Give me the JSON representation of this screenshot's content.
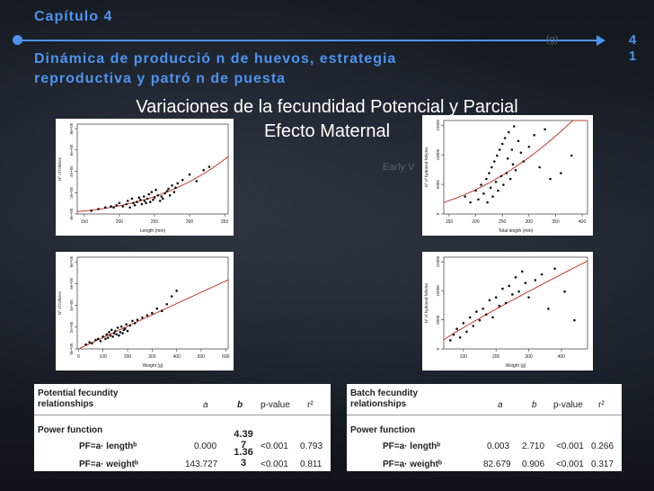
{
  "header": {
    "chapter": "Capítulo  4",
    "page_number_line1": "4",
    "page_number_line2": "1",
    "subtitle_line1": "Dinámica de producció n de huevos, estrategia",
    "subtitle_line2": "reproductiva y  patró n de puesta",
    "faint_overlay_1": "Early V",
    "faint_overlay_2": "(g)"
  },
  "slide": {
    "title_line1": "Variaciones de la fecundidad Potencial y Parcial",
    "title_line2": "Efecto Maternal"
  },
  "chart_data": [
    {
      "type": "scatter",
      "xlabel": "Length (mm)",
      "ylabel": "Nº of follicles",
      "xticks": [
        150,
        200,
        250,
        300,
        350
      ],
      "yticks": [
        "0e+00",
        "2e+05",
        "4e+05",
        "6e+05",
        "8e+05"
      ],
      "xlim": [
        140,
        355
      ],
      "ylim": [
        0,
        820000
      ],
      "fit": "power",
      "x": [
        160,
        170,
        180,
        188,
        192,
        196,
        200,
        205,
        210,
        212,
        215,
        218,
        220,
        222,
        225,
        228,
        230,
        232,
        235,
        236,
        238,
        240,
        242,
        244,
        246,
        248,
        250,
        252,
        255,
        258,
        260,
        262,
        265,
        268,
        270,
        272,
        275,
        278,
        280,
        283,
        290,
        300,
        310,
        320,
        328
      ],
      "y": [
        30000,
        45000,
        60000,
        70000,
        60000,
        80000,
        100000,
        70000,
        90000,
        120000,
        60000,
        140000,
        100000,
        80000,
        110000,
        150000,
        130000,
        90000,
        160000,
        120000,
        100000,
        140000,
        180000,
        110000,
        200000,
        130000,
        150000,
        220000,
        170000,
        120000,
        160000,
        140000,
        190000,
        210000,
        230000,
        170000,
        260000,
        200000,
        240000,
        280000,
        310000,
        360000,
        300000,
        400000,
        430000
      ]
    },
    {
      "type": "scatter",
      "xlabel": "Weight (g)",
      "ylabel": "Nº of follicles",
      "xticks": [
        0,
        100,
        200,
        300,
        400,
        500,
        600
      ],
      "yticks": [
        "0e+00",
        "2e+05",
        "4e+05",
        "6e+05",
        "8e+05"
      ],
      "xlim": [
        -5,
        610
      ],
      "ylim": [
        0,
        820000
      ],
      "fit": "power",
      "x": [
        30,
        45,
        55,
        70,
        80,
        90,
        100,
        110,
        115,
        120,
        125,
        130,
        135,
        140,
        145,
        150,
        155,
        160,
        165,
        170,
        175,
        180,
        185,
        190,
        195,
        200,
        210,
        220,
        230,
        240,
        260,
        280,
        300,
        320,
        340,
        360,
        380,
        400
      ],
      "y": [
        40000,
        60000,
        50000,
        80000,
        90000,
        70000,
        110000,
        90000,
        130000,
        100000,
        150000,
        120000,
        170000,
        110000,
        140000,
        160000,
        130000,
        190000,
        120000,
        150000,
        200000,
        140000,
        170000,
        180000,
        220000,
        160000,
        210000,
        250000,
        230000,
        260000,
        280000,
        300000,
        320000,
        360000,
        340000,
        400000,
        470000,
        520000
      ]
    },
    {
      "type": "scatter",
      "xlabel": "Total length (mm)",
      "ylabel": "Nº of hydrated follicles",
      "xticks": [
        150,
        200,
        250,
        300,
        350,
        400
      ],
      "yticks": [
        "0",
        "5000",
        "10000",
        "15000"
      ],
      "xlim": [
        140,
        410
      ],
      "ylim": [
        0,
        16000
      ],
      "fit": "power",
      "x": [
        180,
        190,
        200,
        205,
        210,
        215,
        220,
        222,
        225,
        228,
        230,
        232,
        235,
        238,
        240,
        242,
        245,
        248,
        250,
        252,
        255,
        258,
        260,
        262,
        265,
        268,
        270,
        272,
        275,
        280,
        285,
        290,
        300,
        310,
        320,
        330,
        340,
        360,
        380
      ],
      "y": [
        3000,
        2000,
        4000,
        2500,
        5000,
        3500,
        6000,
        2000,
        7000,
        4500,
        8000,
        3000,
        9000,
        5500,
        10000,
        4000,
        11000,
        6500,
        12000,
        5000,
        13000,
        7000,
        9500,
        14000,
        6000,
        11000,
        8500,
        15000,
        7500,
        12500,
        10500,
        9000,
        11500,
        13500,
        8000,
        14500,
        6000,
        7000,
        10000
      ]
    },
    {
      "type": "scatter",
      "xlabel": "Weight (g)",
      "ylabel": "Nº of hydrated follicles",
      "xticks": [
        100,
        200,
        300,
        400
      ],
      "yticks": [
        "0",
        "5000",
        "10000",
        "15000"
      ],
      "xlim": [
        40,
        480
      ],
      "ylim": [
        0,
        16000
      ],
      "fit": "power",
      "x": [
        60,
        70,
        80,
        90,
        100,
        110,
        120,
        130,
        140,
        150,
        160,
        170,
        180,
        190,
        200,
        210,
        220,
        230,
        240,
        250,
        260,
        270,
        280,
        290,
        300,
        320,
        340,
        360,
        380,
        410,
        440
      ],
      "y": [
        1500,
        2500,
        3500,
        2000,
        4500,
        3000,
        5500,
        4000,
        6500,
        5000,
        7000,
        6000,
        8500,
        5500,
        9000,
        7500,
        10500,
        8000,
        11000,
        9500,
        12500,
        10000,
        13500,
        11500,
        9000,
        12000,
        13000,
        7000,
        14000,
        10000,
        5000
      ]
    }
  ],
  "table_left": {
    "header_label_line1": "Potential fecundity",
    "header_label_line2": "relationships",
    "col_a": "a",
    "col_b": "b",
    "col_p": "p-value",
    "col_r": "r²",
    "section": "Power function",
    "rows": [
      {
        "label": "PF=a· lengthᵇ",
        "a": "0.000",
        "b": "4.39 7",
        "p": "<0.001",
        "r": "0.793"
      },
      {
        "label": "PF=a· weightᵇ",
        "a": "143.727",
        "b": "1.36 3",
        "p": "<0.001",
        "r": "0.811"
      }
    ]
  },
  "table_right": {
    "header_label_line1": "Batch fecundity",
    "header_label_line2": "relationships",
    "col_a": "a",
    "col_b": "b",
    "col_p": "p-value",
    "col_r": "r²",
    "section": "Power function",
    "rows": [
      {
        "label": "PF=a· lengthᵇ",
        "a": "0.003",
        "b": "2.710",
        "p": "<0.001",
        "r": "0.266"
      },
      {
        "label": "PF=a· weightᵇ",
        "a": "82.679",
        "b": "0.906",
        "p": "<0.001",
        "r": "0.317"
      }
    ]
  }
}
